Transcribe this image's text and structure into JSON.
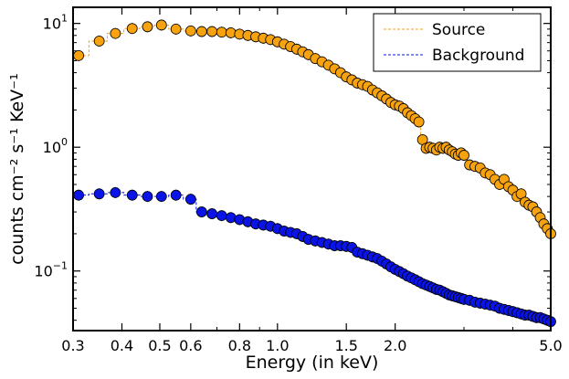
{
  "chart_data": {
    "type": "scatter",
    "title": "",
    "xlabel": "Energy (in keV)",
    "ylabel": "counts cm⁻² s⁻¹ KeV⁻¹",
    "xscale": "log",
    "yscale": "log",
    "xlim": [
      0.3,
      5.0
    ],
    "ylim": [
      0.033,
      13.5
    ],
    "x_ticks": [
      0.3,
      0.4,
      0.5,
      0.6,
      0.8,
      1.0,
      1.5,
      2.0,
      5.0
    ],
    "x_tick_labels": [
      "0.3",
      "0.4",
      "0.5",
      "0.6",
      "0.8",
      "1.0",
      "1.5",
      "2.0",
      "5.0"
    ],
    "y_ticks": [
      {
        "value": 10,
        "base": "10",
        "exp": "1"
      },
      {
        "value": 1,
        "base": "10",
        "exp": "0"
      },
      {
        "value": 0.1,
        "base": "10",
        "exp": "−1"
      }
    ],
    "legend_position": "top-right",
    "series": [
      {
        "name": "Source",
        "color": "#f7a20f",
        "line_style": "dashed-step",
        "points": [
          [
            0.31,
            5.5
          ],
          [
            0.35,
            7.2
          ],
          [
            0.385,
            8.3
          ],
          [
            0.425,
            9.1
          ],
          [
            0.465,
            9.4
          ],
          [
            0.505,
            9.7
          ],
          [
            0.55,
            9.0
          ],
          [
            0.6,
            8.7
          ],
          [
            0.64,
            8.6
          ],
          [
            0.68,
            8.6
          ],
          [
            0.72,
            8.5
          ],
          [
            0.76,
            8.4
          ],
          [
            0.8,
            8.2
          ],
          [
            0.84,
            8.0
          ],
          [
            0.88,
            7.8
          ],
          [
            0.92,
            7.6
          ],
          [
            0.96,
            7.4
          ],
          [
            1.0,
            7.1
          ],
          [
            1.04,
            6.8
          ],
          [
            1.08,
            6.5
          ],
          [
            1.12,
            6.2
          ],
          [
            1.16,
            5.9
          ],
          [
            1.2,
            5.6
          ],
          [
            1.25,
            5.2
          ],
          [
            1.3,
            4.9
          ],
          [
            1.35,
            4.6
          ],
          [
            1.4,
            4.3
          ],
          [
            1.45,
            4.0
          ],
          [
            1.5,
            3.7
          ],
          [
            1.55,
            3.5
          ],
          [
            1.6,
            3.3
          ],
          [
            1.65,
            3.2
          ],
          [
            1.7,
            3.1
          ],
          [
            1.75,
            2.9
          ],
          [
            1.8,
            2.75
          ],
          [
            1.85,
            2.6
          ],
          [
            1.9,
            2.45
          ],
          [
            1.95,
            2.3
          ],
          [
            2.0,
            2.2
          ],
          [
            2.05,
            2.15
          ],
          [
            2.1,
            2.05
          ],
          [
            2.15,
            1.9
          ],
          [
            2.2,
            1.8
          ],
          [
            2.25,
            1.7
          ],
          [
            2.3,
            1.6
          ],
          [
            2.35,
            1.15
          ],
          [
            2.4,
            0.98
          ],
          [
            2.45,
            1.0
          ],
          [
            2.5,
            0.98
          ],
          [
            2.55,
            0.95
          ],
          [
            2.6,
            1.0
          ],
          [
            2.65,
            0.98
          ],
          [
            2.7,
            1.0
          ],
          [
            2.75,
            0.95
          ],
          [
            2.8,
            0.92
          ],
          [
            2.85,
            0.88
          ],
          [
            2.9,
            0.86
          ],
          [
            2.95,
            0.9
          ],
          [
            3.0,
            0.86
          ],
          [
            3.1,
            0.72
          ],
          [
            3.2,
            0.7
          ],
          [
            3.3,
            0.68
          ],
          [
            3.4,
            0.62
          ],
          [
            3.5,
            0.6
          ],
          [
            3.6,
            0.55
          ],
          [
            3.7,
            0.5
          ],
          [
            3.8,
            0.55
          ],
          [
            3.9,
            0.48
          ],
          [
            4.0,
            0.45
          ],
          [
            4.1,
            0.4
          ],
          [
            4.2,
            0.42
          ],
          [
            4.3,
            0.36
          ],
          [
            4.4,
            0.34
          ],
          [
            4.5,
            0.33
          ],
          [
            4.6,
            0.3
          ],
          [
            4.7,
            0.27
          ],
          [
            4.8,
            0.24
          ],
          [
            4.9,
            0.22
          ],
          [
            5.0,
            0.2
          ]
        ]
      },
      {
        "name": "Background",
        "color": "#0a14e6",
        "line_style": "dashed-step",
        "points": [
          [
            0.31,
            0.41
          ],
          [
            0.35,
            0.42
          ],
          [
            0.385,
            0.43
          ],
          [
            0.425,
            0.41
          ],
          [
            0.465,
            0.4
          ],
          [
            0.505,
            0.4
          ],
          [
            0.55,
            0.41
          ],
          [
            0.6,
            0.38
          ],
          [
            0.64,
            0.3
          ],
          [
            0.68,
            0.29
          ],
          [
            0.72,
            0.28
          ],
          [
            0.76,
            0.27
          ],
          [
            0.8,
            0.26
          ],
          [
            0.84,
            0.25
          ],
          [
            0.88,
            0.24
          ],
          [
            0.92,
            0.235
          ],
          [
            0.96,
            0.23
          ],
          [
            1.0,
            0.22
          ],
          [
            1.04,
            0.21
          ],
          [
            1.08,
            0.205
          ],
          [
            1.12,
            0.2
          ],
          [
            1.16,
            0.19
          ],
          [
            1.2,
            0.18
          ],
          [
            1.25,
            0.175
          ],
          [
            1.3,
            0.17
          ],
          [
            1.35,
            0.165
          ],
          [
            1.4,
            0.16
          ],
          [
            1.45,
            0.16
          ],
          [
            1.5,
            0.158
          ],
          [
            1.55,
            0.155
          ],
          [
            1.6,
            0.142
          ],
          [
            1.65,
            0.138
          ],
          [
            1.7,
            0.134
          ],
          [
            1.75,
            0.13
          ],
          [
            1.8,
            0.126
          ],
          [
            1.85,
            0.12
          ],
          [
            1.9,
            0.114
          ],
          [
            1.95,
            0.108
          ],
          [
            2.0,
            0.103
          ],
          [
            2.05,
            0.099
          ],
          [
            2.1,
            0.095
          ],
          [
            2.15,
            0.091
          ],
          [
            2.2,
            0.088
          ],
          [
            2.25,
            0.085
          ],
          [
            2.3,
            0.082
          ],
          [
            2.35,
            0.079
          ],
          [
            2.4,
            0.077
          ],
          [
            2.45,
            0.075
          ],
          [
            2.5,
            0.073
          ],
          [
            2.55,
            0.071
          ],
          [
            2.6,
            0.07
          ],
          [
            2.65,
            0.068
          ],
          [
            2.7,
            0.066
          ],
          [
            2.75,
            0.064
          ],
          [
            2.8,
            0.063
          ],
          [
            2.85,
            0.062
          ],
          [
            2.9,
            0.061
          ],
          [
            2.95,
            0.06
          ],
          [
            3.0,
            0.059
          ],
          [
            3.1,
            0.058
          ],
          [
            3.2,
            0.056
          ],
          [
            3.3,
            0.055
          ],
          [
            3.4,
            0.054
          ],
          [
            3.5,
            0.053
          ],
          [
            3.6,
            0.052
          ],
          [
            3.7,
            0.05
          ],
          [
            3.8,
            0.049
          ],
          [
            3.9,
            0.048
          ],
          [
            4.0,
            0.047
          ],
          [
            4.1,
            0.046
          ],
          [
            4.2,
            0.045
          ],
          [
            4.3,
            0.044
          ],
          [
            4.4,
            0.044
          ],
          [
            4.5,
            0.043
          ],
          [
            4.6,
            0.042
          ],
          [
            4.7,
            0.042
          ],
          [
            4.8,
            0.041
          ],
          [
            4.9,
            0.04
          ],
          [
            5.0,
            0.039
          ]
        ]
      }
    ]
  }
}
